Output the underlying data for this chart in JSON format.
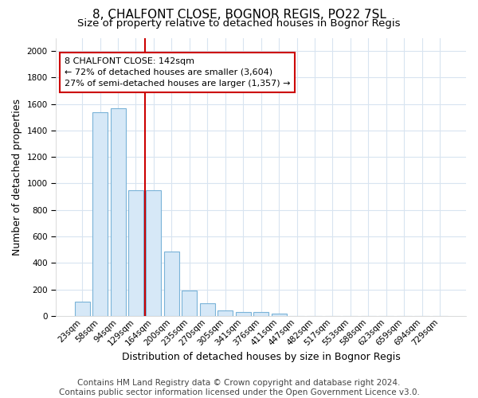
{
  "title": "8, CHALFONT CLOSE, BOGNOR REGIS, PO22 7SL",
  "subtitle": "Size of property relative to detached houses in Bognor Regis",
  "xlabel": "Distribution of detached houses by size in Bognor Regis",
  "ylabel": "Number of detached properties",
  "bin_labels": [
    "23sqm",
    "58sqm",
    "94sqm",
    "129sqm",
    "164sqm",
    "200sqm",
    "235sqm",
    "270sqm",
    "305sqm",
    "341sqm",
    "376sqm",
    "411sqm",
    "447sqm",
    "482sqm",
    "517sqm",
    "553sqm",
    "588sqm",
    "623sqm",
    "659sqm",
    "694sqm",
    "729sqm"
  ],
  "bar_values": [
    110,
    1540,
    1565,
    950,
    950,
    485,
    190,
    95,
    38,
    30,
    30,
    15,
    0,
    0,
    0,
    0,
    0,
    0,
    0,
    0,
    0
  ],
  "bar_color": "#d6e8f7",
  "bar_edge_color": "#7ab3d8",
  "vline_x": 3.5,
  "vline_color": "#cc0000",
  "annotation_text": "8 CHALFONT CLOSE: 142sqm\n← 72% of detached houses are smaller (3,604)\n27% of semi-detached houses are larger (1,357) →",
  "annotation_box_color": "#ffffff",
  "annotation_box_edge_color": "#cc0000",
  "footer_text": "Contains HM Land Registry data © Crown copyright and database right 2024.\nContains public sector information licensed under the Open Government Licence v3.0.",
  "ylim": [
    0,
    2100
  ],
  "yticks": [
    0,
    200,
    400,
    600,
    800,
    1000,
    1200,
    1400,
    1600,
    1800,
    2000
  ],
  "bg_color": "#ffffff",
  "plot_bg_color": "#ffffff",
  "grid_color": "#d8e4f0",
  "title_fontsize": 11,
  "subtitle_fontsize": 9.5,
  "label_fontsize": 9,
  "tick_fontsize": 7.5,
  "footer_fontsize": 7.5
}
